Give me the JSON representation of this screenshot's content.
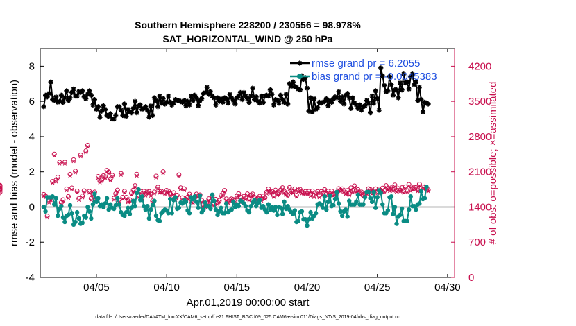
{
  "chart_data": {
    "type": "line",
    "title": "Southern Hemisphere 228200 / 230556 = 98.978%",
    "subtitle": "SAT_HORIZONTAL_WIND @ 250 hPa",
    "xlabel": "Apr.01,2019 00:00:00 start",
    "ylabel": "rmse and bias (model - observation)",
    "y2label": "# of obs: o=possible; ×=assimilated",
    "xlim": [
      1.0,
      30.5
    ],
    "ylim": [
      -4,
      9
    ],
    "y2lim": [
      0,
      4550
    ],
    "x_ticks": [
      5,
      10,
      15,
      20,
      25,
      30
    ],
    "x_tick_labels": [
      "04/05",
      "04/10",
      "04/15",
      "04/20",
      "04/25",
      "04/30"
    ],
    "y_ticks": [
      -4,
      -2,
      0,
      2,
      4,
      6,
      8
    ],
    "y_tick_labels": [
      "-4",
      "-2",
      "0",
      "2",
      "4",
      "6",
      "8"
    ],
    "y2_ticks": [
      0,
      700,
      1400,
      2100,
      2800,
      3500,
      4200
    ],
    "y2_tick_labels": [
      "0",
      "700",
      "1400",
      "2100",
      "2800",
      "3500",
      "4200"
    ],
    "legend": [
      {
        "label": "rmse grand pr = 6.2055",
        "color": "#000000"
      },
      {
        "label": "bias grand pr = -0.0045383",
        "color": "#0a8c84"
      }
    ],
    "legend_position": "top-right",
    "series": [
      {
        "name": "rmse",
        "color": "#000000",
        "values": [
          5.7,
          6.35,
          6.25,
          6.45,
          7.1,
          6.1,
          6.05,
          6.25,
          5.95,
          6.0,
          6.35,
          5.95,
          6.2,
          6.6,
          6.05,
          6.2,
          6.5,
          6.7,
          6.3,
          6.3,
          6.55,
          6.5,
          6.6,
          6.25,
          6.15,
          6.4,
          6.6,
          6.35,
          5.8,
          6.1,
          5.55,
          5.7,
          5.1,
          5.45,
          5.75,
          5.55,
          5.2,
          5.15,
          5.3,
          5.0,
          5.0,
          5.2,
          5.7,
          5.7,
          5.5,
          5.2,
          5.85,
          5.15,
          5.55,
          5.4,
          5.35,
          5.6,
          6.0,
          5.35,
          5.75,
          5.8,
          5.55,
          5.6,
          5.7,
          5.5,
          5.1,
          5.75,
          5.2,
          6.2,
          6.05,
          5.7,
          6.3,
          5.9,
          6.15,
          5.85,
          5.95,
          6.3,
          5.95,
          5.8,
          5.9,
          6.1,
          6.05,
          6.05,
          6.0,
          5.95,
          6.05,
          5.75,
          6.0,
          5.8,
          6.3,
          6.05,
          6.35,
          6.2,
          5.75,
          6.05,
          6.15,
          6.45,
          6.5,
          6.8,
          6.4,
          6.55,
          6.3,
          6.2,
          5.8,
          6.2,
          6.0,
          6.15,
          5.95,
          6.2,
          6.15,
          5.9,
          6.4,
          6.2,
          6.05,
          5.85,
          6.2,
          6.3,
          6.5,
          6.1,
          6.5,
          6.3,
          6.15,
          5.95,
          6.3,
          6.75,
          6.1,
          6.25,
          6.0,
          5.9,
          6.3,
          5.95,
          6.3,
          6.35,
          6.3,
          6.65,
          6.4,
          5.8,
          6.1,
          6.05,
          5.9,
          6.35,
          6.1,
          5.95,
          6.4,
          5.85,
          7.0,
          6.85,
          7.1,
          6.85,
          6.8,
          6.7,
          6.65,
          7.45,
          7.25,
          7.35,
          6.75,
          5.45,
          6.2,
          5.4,
          6.15,
          5.55,
          5.65,
          5.95,
          5.9,
          5.95,
          6.0,
          6.15,
          5.75,
          6.05,
          5.95,
          6.15,
          6.25,
          6.2,
          6.55,
          6.0,
          6.25,
          5.85,
          6.35,
          6.45,
          6.2,
          5.6,
          6.2,
          5.9,
          5.8,
          5.6,
          5.8,
          5.5,
          5.7,
          5.75,
          6.05,
          5.9,
          5.35,
          6.3,
          5.9,
          6.6,
          6.15,
          5.5,
          7.9,
          7.45,
          6.9,
          6.55,
          6.6,
          7.4,
          6.95,
          6.35,
          6.65,
          6.65,
          6.2,
          7.05,
          6.65,
          7.55,
          7.05,
          7.1,
          6.7,
          7.4,
          7.55,
          6.95,
          7.1,
          6.05,
          6.8,
          6.1,
          5.4,
          5.95,
          5.9,
          5.85
        ]
      },
      {
        "name": "bias",
        "color": "#0a8c84",
        "values": [
          0.0,
          -0.25,
          0.55,
          0.55,
          0.55,
          0.6,
          0.15,
          0.5,
          -0.5,
          -0.1,
          0.05,
          -0.6,
          -0.85,
          -0.5,
          -0.45,
          0.1,
          -0.35,
          -1.0,
          -0.85,
          -0.3,
          -0.65,
          -0.95,
          -0.9,
          -0.5,
          -0.6,
          0.0,
          -0.25,
          -0.65,
          0.15,
          0.75,
          0.3,
          0.5,
          0.05,
          0.15,
          0.0,
          0.2,
          0.5,
          -0.15,
          0.15,
          -0.05,
          -0.1,
          0.1,
          0.5,
          0.15,
          -0.3,
          -0.45,
          -0.5,
          -0.3,
          -0.05,
          -0.4,
          -0.05,
          0.35,
          0.05,
          0.8,
          1.0,
          0.4,
          0.6,
          0.05,
          -0.15,
          0.05,
          -0.65,
          -0.15,
          0.1,
          0.35,
          -0.5,
          -0.75,
          -0.8,
          -0.35,
          -0.25,
          -0.15,
          -0.2,
          -0.35,
          0.45,
          -0.35,
          0.4,
          0.55,
          -0.1,
          -0.05,
          0.25,
          0.2,
          0.4,
          0.3,
          -0.2,
          -0.35,
          0.55,
          0.45,
          0.6,
          0.3,
          -0.05,
          0.65,
          -0.3,
          -0.15,
          0.25,
          0.05,
          0.05,
          -0.1,
          0.7,
          0.35,
          -0.15,
          -0.45,
          -0.25,
          -0.05,
          -0.35,
          -0.35,
          0.2,
          -0.3,
          -0.2,
          -0.15,
          0.3,
          0.0,
          0.15,
          0.05,
          0.35,
          0.3,
          0.2,
          0.05,
          -0.2,
          -0.3,
          0.05,
          0.25,
          0.4,
          0.05,
          0.25,
          0.4,
          -0.05,
          0.05,
          -0.15,
          -0.3,
          0.15,
          -0.15,
          0.0,
          -0.2,
          0.0,
          -0.45,
          0.0,
          -0.05,
          -0.4,
          0.3,
          -0.1,
          0.05,
          -0.15,
          -0.3,
          -0.4,
          -0.2,
          -0.85,
          -0.8,
          -0.3,
          -0.25,
          -0.7,
          -0.7,
          -1.05,
          -0.7,
          -0.3,
          -0.65,
          -0.5,
          -0.35,
          0.15,
          0.2,
          0.15,
          -0.05,
          0.6,
          -0.15,
          0.3,
          0.65,
          0.05,
          0.1,
          0.45,
          0.85,
          0.2,
          -0.25,
          -0.5,
          -0.25,
          -0.15,
          -0.55,
          0.35,
          0.15,
          0.15,
          0.15,
          0.3,
          0.7,
          0.15,
          0.15,
          0.15,
          0.55,
          0.85,
          0.85,
          0.5,
          0.3,
          0.85,
          -0.05,
          0.55,
          0.95,
          0.8,
          0.15,
          -0.35,
          -0.35,
          -0.2,
          0.55,
          0.6,
          -0.4,
          0.0,
          -0.95,
          -0.55,
          -0.45,
          -0.1,
          -0.8,
          -0.8,
          -0.8,
          -0.15,
          0.6,
          0.05,
          0.05,
          -0.15,
          0.15,
          0.2,
          0.9,
          0.45,
          0.5,
          1.15
        ]
      },
      {
        "name": "possible",
        "axis": "right",
        "marker": "o",
        "color": "#c8104e",
        "values": [
          1649,
          1618,
          1218,
          1518,
          1563,
          1908,
          2451,
          1934,
          1993,
          2290,
          1487,
          1544,
          2290,
          1759,
          1608,
          2050,
          1778,
          2338,
          2113,
          1717,
          1569,
          2434,
          1618,
          1722,
          2514,
          2627,
          1712,
          1568,
          1655,
          1697,
          1543,
          2006,
          1917,
          1937,
          2022,
          2002,
          2129,
          2096,
          1958,
          2031,
          1574,
          1665,
          1736,
          1532,
          2067,
          1593,
          1714,
          1592,
          1524,
          1545,
          1674,
          1737,
          1826,
          2051,
          1622,
          1709,
          1582,
          1713,
          1656,
          1698,
          1708,
          1653,
          1521,
          1698,
          2013,
          1794,
          1712,
          1715,
          2101,
          1683,
          1730,
          1716,
          1662,
          1605,
          1683,
          1571,
          1634,
          2039,
          1782,
          1584,
          1763,
          1539,
          1596,
          1655,
          1528,
          1506,
          1591,
          1656,
          1628,
          1640,
          1531,
          1446,
          1422,
          1497,
          1563,
          1516,
          1625,
          1462,
          1553,
          1483,
          1531,
          1633,
          1663,
          1729,
          1562,
          1508,
          1548,
          1562,
          1548,
          1526,
          1617,
          1663,
          1593,
          1527,
          1612,
          1582,
          1660,
          1562,
          1639,
          1658,
          1593,
          1530,
          1582,
          1612,
          1554,
          1615,
          1585,
          1695,
          1758,
          1700,
          1706,
          1629,
          1735,
          1665,
          1676,
          1741,
          1784,
          1710,
          1664,
          1638,
          1788,
          1718,
          1704,
          1760,
          1633,
          1736,
          1751,
          1697,
          1680,
          1708,
          1681,
          1710,
          1649,
          1718,
          1626,
          1683,
          1706,
          1622,
          1707,
          1675,
          1746,
          1658,
          1715,
          1639,
          1717,
          1650,
          1659,
          1697,
          1767,
          1739,
          1762,
          1728,
          1687,
          1727,
          1661,
          1780,
          1723,
          1820,
          1727,
          1746,
          1670,
          1698,
          1630,
          1658,
          1687,
          1763,
          1748,
          1689,
          1716,
          1762,
          1698,
          1755,
          1708,
          1775,
          1722,
          1826,
          1768,
          1748,
          1782,
          1750,
          1837,
          1731,
          1766,
          1738,
          1784,
          1714,
          1801,
          1726,
          1847,
          1747,
          1771,
          1795,
          1786,
          1742,
          1853,
          1766,
          1799,
          1802,
          1750,
          1743,
          1830,
          1696,
          1738,
          1755,
          1772,
          1754,
          1811,
          1767,
          1823,
          1776
        ]
      },
      {
        "name": "assimilated",
        "axis": "right",
        "marker": "x",
        "color": "#c8104e",
        "values": [
          1619,
          1588,
          1188,
          1488,
          1533,
          1878,
          2421,
          1904,
          1963,
          2260,
          1457,
          1514,
          2260,
          1729,
          1578,
          2020,
          1748,
          2308,
          2083,
          1687,
          1539,
          2404,
          1588,
          1692,
          2484,
          2597,
          1682,
          1538,
          1625,
          1667,
          1513,
          1976,
          1887,
          1907,
          1992,
          1972,
          2099,
          2066,
          1928,
          2001,
          1544,
          1635,
          1706,
          1502,
          2037,
          1563,
          1684,
          1562,
          1494,
          1515,
          1644,
          1707,
          1796,
          2021,
          1592,
          1679,
          1552,
          1683,
          1626,
          1668,
          1678,
          1623,
          1491,
          1668,
          1983,
          1764,
          1682,
          1685,
          2071,
          1653,
          1700,
          1686,
          1632,
          1575,
          1653,
          1541,
          1604,
          2009,
          1752,
          1554,
          1733,
          1509,
          1566,
          1625,
          1498,
          1476,
          1561,
          1626,
          1598,
          1610,
          1501,
          1416,
          1392,
          1467,
          1533,
          1486,
          1595,
          1432,
          1523,
          1453,
          1501,
          1603,
          1633,
          1699,
          1532,
          1478,
          1518,
          1532,
          1518,
          1496,
          1587,
          1633,
          1563,
          1497,
          1582,
          1552,
          1630,
          1532,
          1609,
          1628,
          1563,
          1500,
          1552,
          1582,
          1524,
          1585,
          1555,
          1665,
          1728,
          1670,
          1676,
          1599,
          1705,
          1635,
          1646,
          1711,
          1754,
          1680,
          1634,
          1608,
          1758,
          1688,
          1674,
          1730,
          1603,
          1706,
          1721,
          1667,
          1650,
          1678,
          1651,
          1680,
          1619,
          1688,
          1596,
          1653,
          1676,
          1592,
          1677,
          1645,
          1716,
          1628,
          1685,
          1609,
          1687,
          1620,
          1629,
          1667,
          1737,
          1709,
          1732,
          1698,
          1657,
          1697,
          1631,
          1750,
          1693,
          1790,
          1697,
          1716,
          1640,
          1668,
          1600,
          1628,
          1657,
          1733,
          1718,
          1659,
          1686,
          1732,
          1668,
          1725,
          1678,
          1745,
          1692,
          1796,
          1738,
          1718,
          1752,
          1720,
          1807,
          1701,
          1736,
          1708,
          1754,
          1684,
          1771,
          1696,
          1817,
          1717,
          1741,
          1765,
          1756,
          1712,
          1823,
          1736,
          1769,
          1772,
          1720,
          1713,
          1800,
          1666,
          1708,
          1725,
          1742,
          1724,
          1781,
          1737,
          1793,
          1746
        ]
      }
    ]
  },
  "footnote": "data file: /Users/raeder/DAI/ATM_forcXX/CAM6_setup/f.e21.FHIST_BGC.f09_025.CAM6assim.011/Diags_NTrS_2019-04/obs_diag_output.nc"
}
